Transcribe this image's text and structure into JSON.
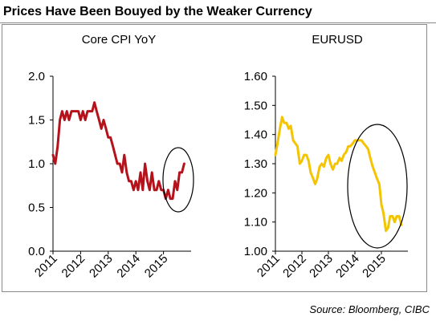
{
  "header": {
    "title": "Prices Have Been Bouyed by the Weaker Currency",
    "source": "Source: Bloomberg, CIBC"
  },
  "chart_data": [
    {
      "type": "line",
      "title": "Core CPI YoY",
      "ylim": [
        0.0,
        2.0
      ],
      "xlim": [
        2011.0,
        2016.0
      ],
      "yticks": [
        "0.0",
        "0.5",
        "1.0",
        "1.5",
        "2.0"
      ],
      "xticks": [
        "2011",
        "2012",
        "2013",
        "2014",
        "2015"
      ],
      "grid": false,
      "series": [
        {
          "color": "#b5121b",
          "x": [
            2011.0,
            2011.08,
            2011.17,
            2011.25,
            2011.33,
            2011.42,
            2011.5,
            2011.58,
            2011.67,
            2011.75,
            2011.83,
            2011.92,
            2012.0,
            2012.08,
            2012.17,
            2012.25,
            2012.33,
            2012.42,
            2012.5,
            2012.58,
            2012.67,
            2012.75,
            2012.83,
            2012.92,
            2013.0,
            2013.08,
            2013.17,
            2013.25,
            2013.33,
            2013.42,
            2013.5,
            2013.58,
            2013.67,
            2013.75,
            2013.83,
            2013.92,
            2014.0,
            2014.08,
            2014.17,
            2014.25,
            2014.33,
            2014.42,
            2014.5,
            2014.58,
            2014.67,
            2014.75,
            2014.83,
            2014.92,
            2015.0,
            2015.08,
            2015.17,
            2015.25,
            2015.33,
            2015.42,
            2015.5,
            2015.58,
            2015.67,
            2015.75
          ],
          "y": [
            1.1,
            1.0,
            1.2,
            1.5,
            1.6,
            1.5,
            1.6,
            1.5,
            1.6,
            1.6,
            1.6,
            1.6,
            1.5,
            1.6,
            1.5,
            1.6,
            1.6,
            1.6,
            1.7,
            1.6,
            1.5,
            1.4,
            1.5,
            1.4,
            1.3,
            1.3,
            1.2,
            1.1,
            1.0,
            1.0,
            0.9,
            1.1,
            0.9,
            0.8,
            0.8,
            0.7,
            0.8,
            0.7,
            0.9,
            0.7,
            1.0,
            0.8,
            0.7,
            0.9,
            0.7,
            0.7,
            0.8,
            0.7,
            0.7,
            0.6,
            0.7,
            0.6,
            0.6,
            0.8,
            0.7,
            0.9,
            0.9,
            1.0
          ]
        }
      ],
      "annotation": "ellipse around 2015 values"
    },
    {
      "type": "line",
      "title": "EURUSD",
      "ylim": [
        1.0,
        1.6
      ],
      "xlim": [
        2011.0,
        2016.0
      ],
      "yticks": [
        "1.00",
        "1.10",
        "1.20",
        "1.30",
        "1.40",
        "1.50",
        "1.60"
      ],
      "xticks": [
        "2011",
        "2012",
        "2013",
        "2014",
        "2015"
      ],
      "grid": false,
      "series": [
        {
          "color": "#f5c400",
          "x": [
            2011.0,
            2011.08,
            2011.17,
            2011.25,
            2011.33,
            2011.42,
            2011.5,
            2011.58,
            2011.67,
            2011.75,
            2011.83,
            2011.92,
            2012.0,
            2012.08,
            2012.17,
            2012.25,
            2012.33,
            2012.42,
            2012.5,
            2012.58,
            2012.67,
            2012.75,
            2012.83,
            2012.92,
            2013.0,
            2013.08,
            2013.17,
            2013.25,
            2013.33,
            2013.42,
            2013.5,
            2013.58,
            2013.67,
            2013.75,
            2013.83,
            2013.92,
            2014.0,
            2014.08,
            2014.17,
            2014.25,
            2014.33,
            2014.42,
            2014.5,
            2014.58,
            2014.67,
            2014.75,
            2014.83,
            2014.92,
            2015.0,
            2015.08,
            2015.17,
            2015.25,
            2015.33,
            2015.42,
            2015.5,
            2015.58,
            2015.67,
            2015.75
          ],
          "y": [
            1.33,
            1.37,
            1.42,
            1.46,
            1.44,
            1.44,
            1.42,
            1.43,
            1.38,
            1.37,
            1.36,
            1.3,
            1.31,
            1.33,
            1.33,
            1.31,
            1.27,
            1.25,
            1.23,
            1.25,
            1.29,
            1.3,
            1.29,
            1.32,
            1.33,
            1.3,
            1.28,
            1.3,
            1.3,
            1.32,
            1.31,
            1.33,
            1.34,
            1.36,
            1.36,
            1.37,
            1.38,
            1.38,
            1.38,
            1.38,
            1.37,
            1.36,
            1.35,
            1.32,
            1.29,
            1.27,
            1.25,
            1.23,
            1.16,
            1.13,
            1.07,
            1.08,
            1.12,
            1.12,
            1.1,
            1.12,
            1.12,
            1.09
          ]
        }
      ],
      "annotation": "ellipse around 2014-2015 decline"
    }
  ]
}
